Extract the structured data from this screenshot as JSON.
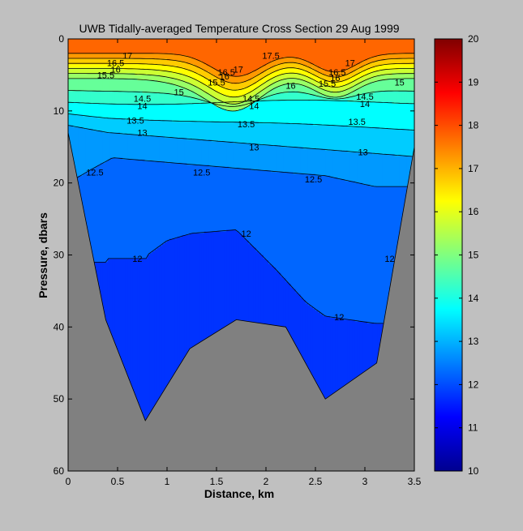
{
  "chart_data": {
    "type": "contour",
    "title": "UWB  Tidally-averaged Temperature Cross Section  29 Aug 1999",
    "xlabel": "Distance, km",
    "ylabel": "Pressure, dbars",
    "xlim": [
      0,
      3.5
    ],
    "ylim": [
      60,
      0
    ],
    "x_ticks": [
      "0",
      "0.5",
      "1",
      "1.5",
      "2",
      "2.5",
      "3",
      "3.5"
    ],
    "y_ticks": [
      "0",
      "10",
      "20",
      "30",
      "40",
      "50",
      "60"
    ],
    "colorbar": {
      "range": [
        10,
        20
      ],
      "ticks": [
        "10",
        "11",
        "12",
        "13",
        "14",
        "15",
        "16",
        "17",
        "18",
        "19",
        "20"
      ],
      "colormap": "jet"
    },
    "bottom_profile": [
      {
        "x": 0.0,
        "y": 13
      },
      {
        "x": 0.38,
        "y": 39
      },
      {
        "x": 0.78,
        "y": 53
      },
      {
        "x": 1.23,
        "y": 43
      },
      {
        "x": 1.7,
        "y": 39
      },
      {
        "x": 2.2,
        "y": 40
      },
      {
        "x": 2.6,
        "y": 50
      },
      {
        "x": 3.12,
        "y": 45
      },
      {
        "x": 3.5,
        "y": 15
      }
    ],
    "contour_levels": [
      17.5,
      17,
      16.5,
      16,
      15.5,
      15,
      14.5,
      14,
      13.5,
      13,
      12.5,
      12
    ],
    "contour_labels": [
      {
        "text": "17",
        "x": 0.6,
        "y": 2.3
      },
      {
        "text": "17.5",
        "x": 2.05,
        "y": 2.3
      },
      {
        "text": "16.5",
        "x": 0.48,
        "y": 3.3
      },
      {
        "text": "16",
        "x": 0.48,
        "y": 4.2
      },
      {
        "text": "15.5",
        "x": 0.38,
        "y": 5.0
      },
      {
        "text": "16.5",
        "x": 1.6,
        "y": 4.6
      },
      {
        "text": "17",
        "x": 1.72,
        "y": 4.2
      },
      {
        "text": "16",
        "x": 1.58,
        "y": 5.2
      },
      {
        "text": "15.5",
        "x": 1.5,
        "y": 6.0
      },
      {
        "text": "15",
        "x": 1.12,
        "y": 7.4
      },
      {
        "text": "16",
        "x": 2.25,
        "y": 6.5
      },
      {
        "text": "16.5",
        "x": 2.72,
        "y": 4.6
      },
      {
        "text": "16",
        "x": 2.7,
        "y": 5.4
      },
      {
        "text": "15.5",
        "x": 2.62,
        "y": 6.2
      },
      {
        "text": "17",
        "x": 2.85,
        "y": 3.3
      },
      {
        "text": "15",
        "x": 3.35,
        "y": 6.0
      },
      {
        "text": "14.5",
        "x": 0.75,
        "y": 8.3
      },
      {
        "text": "14",
        "x": 0.75,
        "y": 9.3
      },
      {
        "text": "14.5",
        "x": 1.85,
        "y": 8.3
      },
      {
        "text": "14",
        "x": 1.88,
        "y": 9.3
      },
      {
        "text": "14.5",
        "x": 3.0,
        "y": 8.0
      },
      {
        "text": "14",
        "x": 3.0,
        "y": 9.0
      },
      {
        "text": "13.5",
        "x": 0.68,
        "y": 11.3
      },
      {
        "text": "13.5",
        "x": 1.8,
        "y": 11.8
      },
      {
        "text": "13.5",
        "x": 2.92,
        "y": 11.5
      },
      {
        "text": "13",
        "x": 0.75,
        "y": 13.0
      },
      {
        "text": "13",
        "x": 1.88,
        "y": 15.0
      },
      {
        "text": "13",
        "x": 2.98,
        "y": 15.7
      },
      {
        "text": "12.5",
        "x": 0.27,
        "y": 18.5
      },
      {
        "text": "12.5",
        "x": 1.35,
        "y": 18.5
      },
      {
        "text": "12.5",
        "x": 2.48,
        "y": 19.5
      },
      {
        "text": "12",
        "x": 0.7,
        "y": 30.5
      },
      {
        "text": "12",
        "x": 1.8,
        "y": 27.0
      },
      {
        "text": "12",
        "x": 2.74,
        "y": 38.6
      },
      {
        "text": "12",
        "x": 3.25,
        "y": 30.5
      }
    ]
  }
}
